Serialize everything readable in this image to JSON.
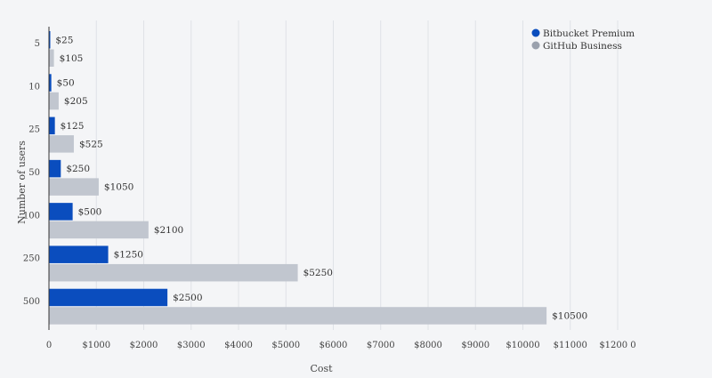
{
  "chart_data": {
    "type": "bar",
    "orientation": "horizontal",
    "categories": [
      "5",
      "10",
      "25",
      "50",
      "100",
      "250",
      "500"
    ],
    "series": [
      {
        "name": "Bitbucket Premium",
        "values": [
          25,
          50,
          125,
          250,
          500,
          1250,
          2500
        ],
        "labels": [
          "$25",
          "$50",
          "$125",
          "$250",
          "$500",
          "$1250",
          "$2500"
        ],
        "color": "#0a4dbe"
      },
      {
        "name": "GitHub Business",
        "values": [
          105,
          205,
          525,
          1050,
          2100,
          5250,
          10500
        ],
        "labels": [
          "$105",
          "$205",
          "$525",
          "$1050",
          "$2100",
          "$5250",
          "$10500"
        ],
        "color": "#c1c6cf"
      }
    ],
    "xlabel": "Cost",
    "ylabel": "Number of users",
    "xlim": [
      0,
      12000
    ],
    "xticks": [
      0,
      1000,
      2000,
      3000,
      4000,
      5000,
      6000,
      7000,
      8000,
      9000,
      10000,
      11000,
      12000
    ],
    "xtick_labels": [
      "0",
      "$1000",
      "$2000",
      "$3000",
      "$4000",
      "$5000",
      "$6000",
      "$7000",
      "$8000",
      "$9000",
      "$10000",
      "$11000",
      "$1200 0"
    ],
    "grid": true,
    "legend_position": "top-right"
  }
}
